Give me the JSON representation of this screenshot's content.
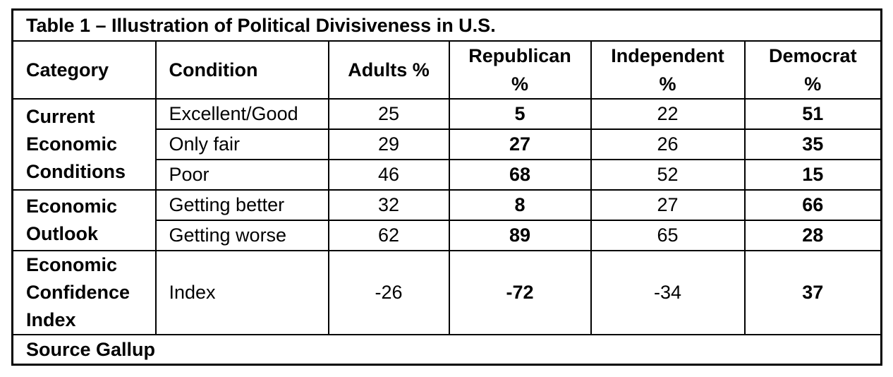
{
  "title": "Table 1 – Illustration of Political Divisiveness in U.S.",
  "headers": {
    "category": "Category",
    "condition": "Condition",
    "adults": "Adults %",
    "republican_1": "Republican",
    "republican_2": "%",
    "independent_1": "Independent",
    "independent_2": "%",
    "democrat_1": "Democrat",
    "democrat_2": "%"
  },
  "groups": [
    {
      "category_lines": [
        "Current",
        "Economic",
        "Conditions"
      ],
      "rows": [
        {
          "condition": "Excellent/Good",
          "adults": "25",
          "republican": "5",
          "independent": "22",
          "democrat": "51"
        },
        {
          "condition": "Only fair",
          "adults": "29",
          "republican": "27",
          "independent": "26",
          "democrat": "35"
        },
        {
          "condition": "Poor",
          "adults": "46",
          "republican": "68",
          "independent": "52",
          "democrat": "15"
        }
      ]
    },
    {
      "category_lines": [
        "Economic",
        "Outlook"
      ],
      "rows": [
        {
          "condition": "Getting better",
          "adults": "32",
          "republican": "8",
          "independent": "27",
          "democrat": "66"
        },
        {
          "condition": "Getting worse",
          "adults": "62",
          "republican": "89",
          "independent": "65",
          "democrat": "28"
        }
      ]
    },
    {
      "category_lines": [
        "Economic",
        "Confidence",
        "Index"
      ],
      "rows": [
        {
          "condition": "Index",
          "adults": "-26",
          "republican": "-72",
          "independent": "-34",
          "democrat": "37"
        }
      ]
    }
  ],
  "source": "Source Gallup"
}
